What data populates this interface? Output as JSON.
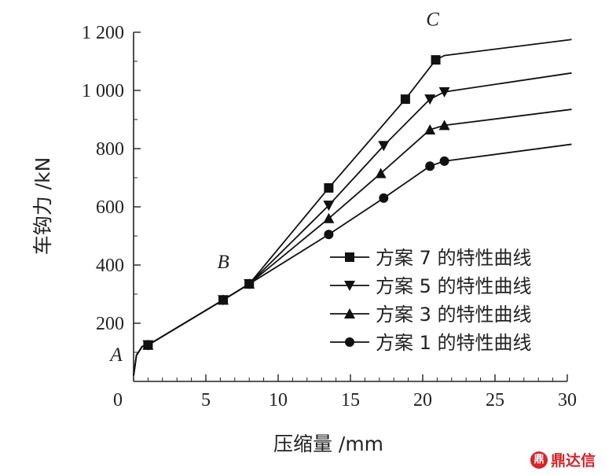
{
  "chart_data": {
    "type": "line",
    "xlabel": "压缩量 /mm",
    "ylabel": "车钩力 /kN",
    "xlim": [
      0,
      30
    ],
    "ylim": [
      0,
      1200
    ],
    "xticks": [
      "0",
      "5",
      "10",
      "15",
      "20",
      "25",
      "30"
    ],
    "yticks": [
      "200",
      "400",
      "600",
      "800",
      "1 000",
      "1 200"
    ],
    "xtick_values": [
      0,
      5,
      10,
      15,
      20,
      25,
      30
    ],
    "ytick_values": [
      200,
      400,
      600,
      800,
      1000,
      1200
    ],
    "legend_position": "middle-right",
    "point_labels": [
      {
        "text": "A",
        "x": 0,
        "y": 0
      },
      {
        "text": "B",
        "x": 6.2,
        "y": 340
      },
      {
        "text": "C",
        "x": 20.9,
        "y": 1180
      }
    ],
    "series": [
      {
        "name": "方案 7 的特性曲线",
        "marker": "square",
        "line": [
          [
            0,
            20
          ],
          [
            0.2,
            90
          ],
          [
            0.6,
            120
          ],
          [
            1,
            125
          ],
          [
            6.2,
            280
          ],
          [
            8,
            335
          ],
          [
            13.5,
            665
          ],
          [
            18.8,
            970
          ],
          [
            20.9,
            1105
          ],
          [
            21.5,
            1120
          ],
          [
            30.3,
            1175
          ]
        ],
        "markers": [
          [
            1,
            125
          ],
          [
            6.2,
            280
          ],
          [
            8,
            335
          ],
          [
            13.5,
            665
          ],
          [
            18.8,
            970
          ],
          [
            20.9,
            1105
          ]
        ]
      },
      {
        "name": "方案 5 的特性曲线",
        "marker": "triangle-down",
        "line": [
          [
            0,
            20
          ],
          [
            0.2,
            90
          ],
          [
            0.6,
            120
          ],
          [
            1,
            125
          ],
          [
            6.2,
            280
          ],
          [
            8,
            335
          ],
          [
            13.5,
            605
          ],
          [
            17.3,
            810
          ],
          [
            20.5,
            970
          ],
          [
            21.5,
            995
          ],
          [
            30.3,
            1060
          ]
        ],
        "markers": [
          [
            1,
            125
          ],
          [
            6.2,
            280
          ],
          [
            8,
            335
          ],
          [
            13.5,
            605
          ],
          [
            17.3,
            810
          ],
          [
            20.5,
            970
          ],
          [
            21.5,
            995
          ]
        ]
      },
      {
        "name": "方案 3 的特性曲线",
        "marker": "triangle-up",
        "line": [
          [
            0,
            20
          ],
          [
            0.2,
            90
          ],
          [
            0.6,
            120
          ],
          [
            1,
            125
          ],
          [
            6.2,
            280
          ],
          [
            8,
            335
          ],
          [
            13.5,
            560
          ],
          [
            17.1,
            715
          ],
          [
            20.5,
            865
          ],
          [
            21.5,
            880
          ],
          [
            30.3,
            935
          ]
        ],
        "markers": [
          [
            1,
            125
          ],
          [
            6.2,
            280
          ],
          [
            8,
            335
          ],
          [
            13.5,
            560
          ],
          [
            17.1,
            715
          ],
          [
            20.5,
            865
          ],
          [
            21.5,
            880
          ]
        ]
      },
      {
        "name": "方案 1 的特性曲线",
        "marker": "circle",
        "line": [
          [
            0,
            20
          ],
          [
            0.2,
            90
          ],
          [
            0.6,
            120
          ],
          [
            1,
            125
          ],
          [
            6.2,
            280
          ],
          [
            8,
            335
          ],
          [
            13.5,
            505
          ],
          [
            17.3,
            630
          ],
          [
            20.5,
            740
          ],
          [
            21.5,
            757
          ],
          [
            30.3,
            815
          ]
        ],
        "markers": [
          [
            1,
            125
          ],
          [
            6.2,
            280
          ],
          [
            8,
            335
          ],
          [
            13.5,
            505
          ],
          [
            17.3,
            630
          ],
          [
            20.5,
            740
          ],
          [
            21.5,
            757
          ]
        ]
      }
    ]
  },
  "watermark": {
    "icon": "鼎",
    "text": "鼎达信"
  }
}
